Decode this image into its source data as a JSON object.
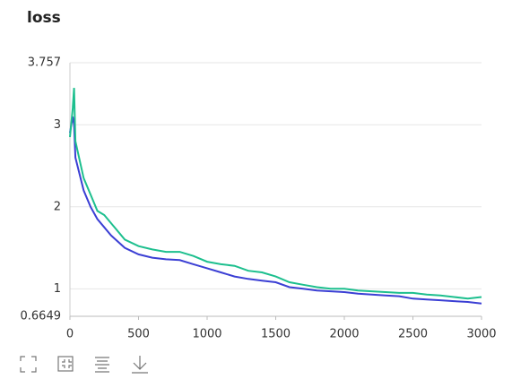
{
  "chart_data": {
    "type": "line",
    "title": "loss",
    "x": [
      0,
      20,
      30,
      40,
      100,
      150,
      200,
      250,
      300,
      400,
      500,
      600,
      700,
      800,
      900,
      1000,
      1100,
      1200,
      1300,
      1400,
      1500,
      1600,
      1700,
      1800,
      1900,
      2000,
      2100,
      2200,
      2300,
      2400,
      2500,
      2600,
      2700,
      2800,
      2900,
      3000
    ],
    "series": [
      {
        "color": "#3b3fd4",
        "values": [
          2.9,
          3.1,
          3.0,
          2.6,
          2.2,
          2.0,
          1.85,
          1.75,
          1.65,
          1.5,
          1.42,
          1.38,
          1.36,
          1.35,
          1.3,
          1.25,
          1.2,
          1.15,
          1.12,
          1.1,
          1.08,
          1.02,
          1.0,
          0.98,
          0.97,
          0.96,
          0.94,
          0.93,
          0.92,
          0.91,
          0.88,
          0.87,
          0.86,
          0.85,
          0.84,
          0.82
        ]
      },
      {
        "color": "#1dbf8e",
        "values": [
          2.85,
          3.2,
          3.45,
          2.8,
          2.35,
          2.15,
          1.95,
          1.9,
          1.8,
          1.6,
          1.52,
          1.48,
          1.45,
          1.45,
          1.4,
          1.33,
          1.3,
          1.28,
          1.22,
          1.2,
          1.15,
          1.08,
          1.05,
          1.02,
          1.0,
          1.0,
          0.98,
          0.97,
          0.96,
          0.95,
          0.95,
          0.93,
          0.92,
          0.9,
          0.88,
          0.9
        ]
      }
    ],
    "xlim": [
      0,
      3000
    ],
    "xticks": [
      0,
      500,
      1000,
      1500,
      2000,
      2500,
      3000
    ],
    "ylim": [
      0.6649,
      3.757
    ],
    "yticks": [
      0.6649,
      1,
      2,
      3,
      3.757
    ],
    "grid": true
  }
}
